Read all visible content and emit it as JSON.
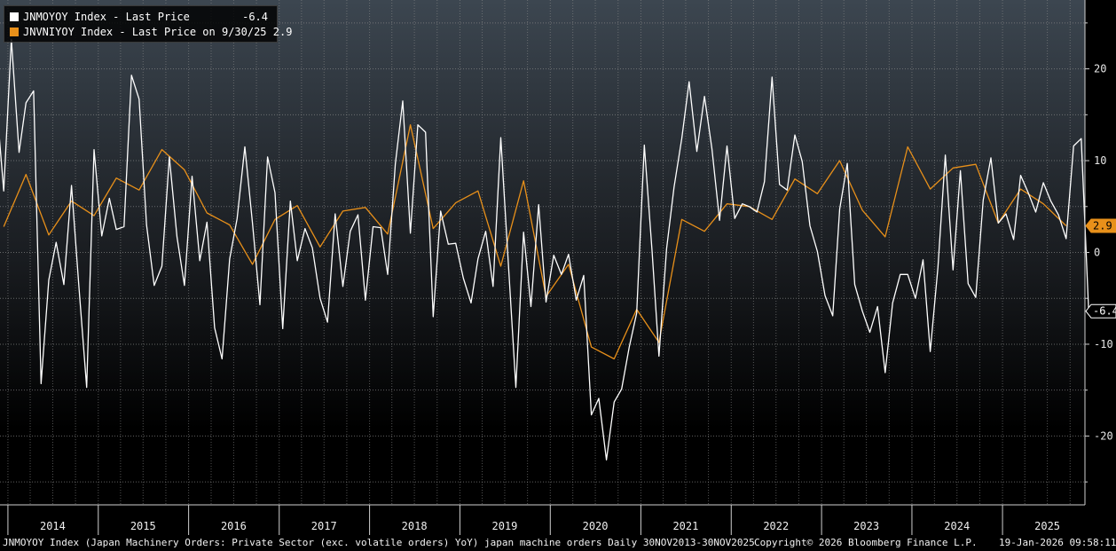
{
  "legend": {
    "series1_label": "JNMOYOY Index - Last Price",
    "series1_value": "-6.4",
    "series2_label": "JNVNIYOY Index - Last Price on 9/30/25",
    "series2_value": "2.9"
  },
  "footer": {
    "description": "JNMOYOY Index (Japan Machinery Orders: Private Sector (exc. volatile orders) YoY) japan machine orders Daily 30NOV2013-30NOV2025",
    "copyright": "Copyright© 2026 Bloomberg Finance L.P.",
    "timestamp": "19-Jan-2026 09:58:11"
  },
  "colors": {
    "series1": "#ffffff",
    "series2": "#e8901a",
    "grid": "#8a8a8a",
    "background_top": "#3c4650",
    "background_bottom": "#000000"
  },
  "chart_data": {
    "type": "line",
    "x_range": [
      "2013-11-30",
      "2025-11-30"
    ],
    "ylim": [
      -27.5,
      27.5
    ],
    "y_ticks": [
      -20,
      -10,
      0,
      10,
      20
    ],
    "x_tick_labels": [
      "2014",
      "2015",
      "2016",
      "2017",
      "2018",
      "2019",
      "2020",
      "2021",
      "2022",
      "2023",
      "2024",
      "2025"
    ],
    "grid": true,
    "legend_position": "top-left",
    "last_value_labels": [
      "-6.4",
      "2.9"
    ],
    "series": [
      {
        "name": "JNMOYOY Index - Last Price",
        "color": "#ffffff",
        "frequency": "monthly",
        "start": "2013-11",
        "values": [
          16.6,
          6.7,
          23.2,
          10.9,
          16.3,
          17.6,
          -14.3,
          -3.0,
          1.1,
          -3.5,
          7.3,
          -3.8,
          -14.7,
          11.2,
          1.8,
          5.9,
          2.5,
          2.8,
          19.3,
          16.7,
          3.0,
          -3.6,
          -1.5,
          10.4,
          1.7,
          -3.6,
          8.3,
          -0.9,
          3.3,
          -8.2,
          -11.6,
          -0.7,
          3.7,
          11.5,
          3.2,
          -5.7,
          10.4,
          6.5,
          -8.3,
          5.6,
          -0.9,
          2.6,
          0.5,
          -5.0,
          -7.6,
          4.2,
          -3.7,
          2.3,
          4.1,
          -5.2,
          2.8,
          2.7,
          -2.4,
          9.6,
          16.5,
          2.1,
          13.9,
          13.1,
          -7.0,
          4.5,
          0.9,
          1.0,
          -2.8,
          -5.5,
          -0.7,
          2.3,
          -3.7,
          12.5,
          -1.0,
          -14.7,
          2.2,
          -5.9,
          5.2,
          -5.4,
          -0.3,
          -2.4,
          -0.2,
          -5.2,
          -2.5,
          -17.7,
          -15.9,
          -22.6,
          -16.3,
          -14.9,
          -10.3,
          -6.6,
          11.7,
          0.2,
          -11.3,
          0.4,
          7.1,
          12.4,
          18.6,
          11.0,
          17.0,
          11.3,
          3.5,
          11.6,
          3.7,
          5.3,
          5.0,
          4.4,
          7.7,
          19.1,
          7.4,
          6.8,
          12.8,
          9.9,
          2.9,
          0.1,
          -4.7,
          -6.9,
          4.7,
          9.7,
          -3.5,
          -6.4,
          -8.7,
          -5.9,
          -13.1,
          -5.5,
          -2.4,
          -2.4,
          -5.0,
          -0.8,
          -10.8,
          -1.6,
          10.6,
          -1.9,
          8.9,
          -3.4,
          -4.9,
          5.7,
          10.3,
          3.2,
          4.2,
          1.4,
          8.4,
          6.5,
          4.4,
          7.6,
          5.6,
          4.1,
          1.5,
          11.6,
          12.4,
          -6.4
        ]
      },
      {
        "name": "JNVNIYOY Index - Last Price on 9/30/25",
        "color": "#e8901a",
        "frequency": "quarterly",
        "start": "2013-12",
        "values": [
          2.8,
          8.5,
          1.9,
          5.6,
          4.0,
          8.1,
          6.8,
          11.2,
          9.0,
          4.3,
          3.0,
          -1.3,
          3.6,
          5.1,
          0.6,
          4.5,
          4.9,
          2.0,
          13.9,
          2.6,
          5.4,
          6.7,
          -1.5,
          7.8,
          -4.8,
          -1.3,
          -10.3,
          -11.6,
          -6.2,
          -9.8,
          3.6,
          2.3,
          5.3,
          5.0,
          3.6,
          8.0,
          6.4,
          10.0,
          4.6,
          1.7,
          11.5,
          6.9,
          9.2,
          9.6,
          3.2,
          6.9,
          5.3,
          2.9
        ]
      }
    ]
  }
}
